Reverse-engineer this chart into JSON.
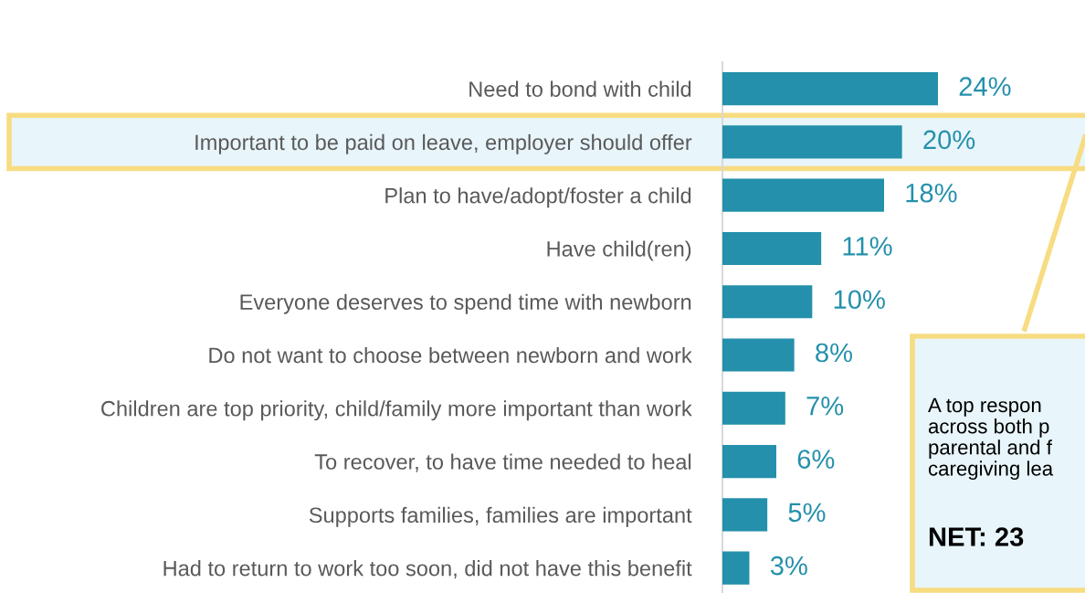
{
  "chart_data": {
    "type": "bar",
    "orientation": "horizontal",
    "categories": [
      "Need to bond with child",
      "Important to be paid on leave, employer should offer",
      "Plan to have/adopt/foster a child",
      "Have child(ren)",
      "Everyone deserves to spend time with newborn",
      "Do not want to choose between newborn and work",
      "Children are top priority, child/family more important than work",
      "To recover, to have time needed to heal",
      "Supports families, families are important",
      "Had to return to work too soon, did not have this benefit"
    ],
    "values": [
      24,
      20,
      18,
      11,
      10,
      8,
      7,
      6,
      5,
      3
    ],
    "value_labels": [
      "24%",
      "20%",
      "18%",
      "11%",
      "10%",
      "8%",
      "7%",
      "6%",
      "5%",
      "3%"
    ],
    "color": "#2490ab",
    "tick_labels": "y",
    "grid": false,
    "bands": [
      {
        "axis": "y",
        "from": "Important to be paid on leave, employer should offer",
        "to": "Important to be paid on leave, employer should offer",
        "color": "#f7dc82"
      }
    ],
    "annotations": [
      "A top respon\nacross both p\nparental and f\ncaregiving lea",
      "NET: 23"
    ]
  }
}
